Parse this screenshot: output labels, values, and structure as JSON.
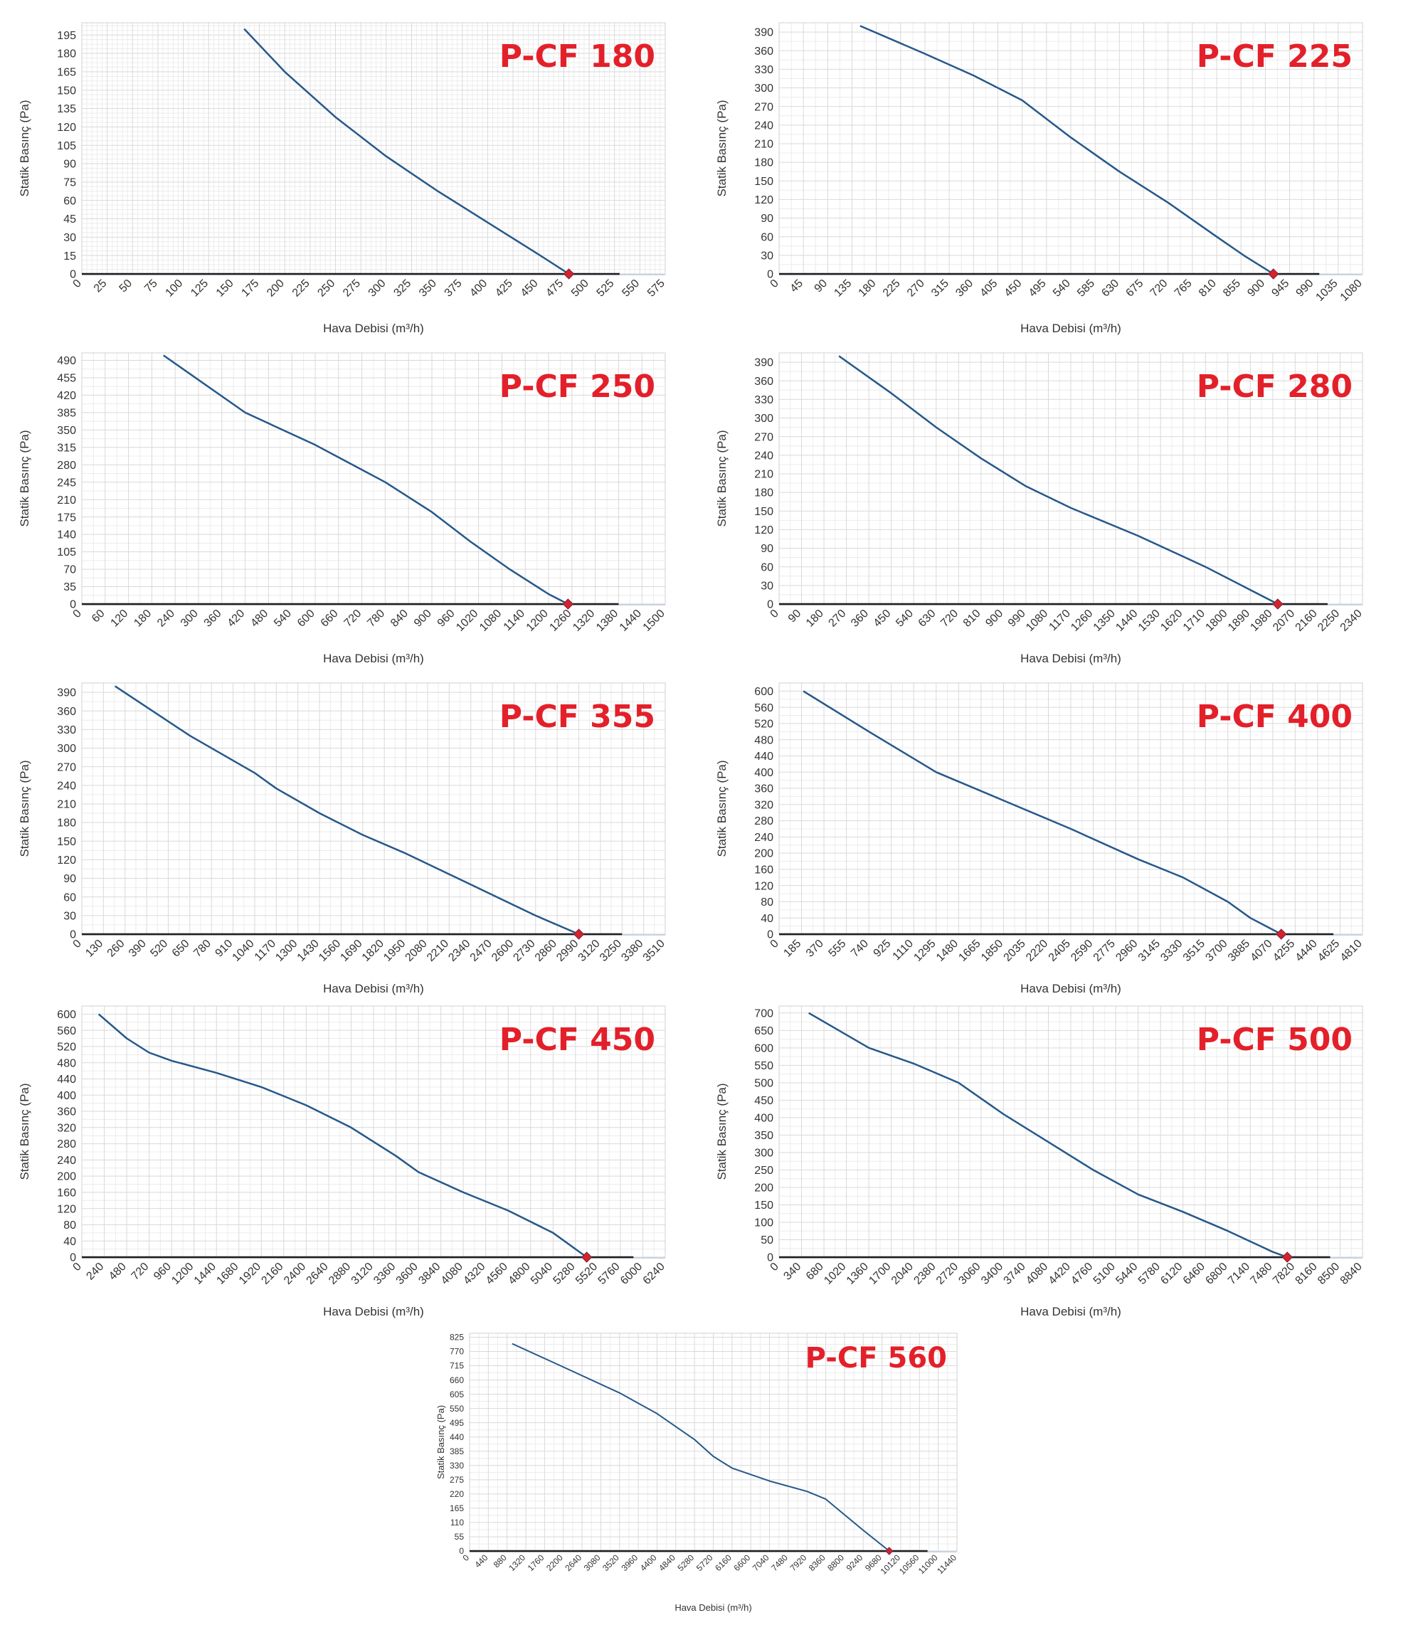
{
  "colors": {
    "title": "#e3202a",
    "curve": "#26588a",
    "axis": "#1e1e1e",
    "grid_minor": "#ececec",
    "grid_major": "#d9d9d9",
    "marker": "#d4232b",
    "label": "#333333"
  },
  "chart_data": [
    {
      "type": "line",
      "title": "P-CF 180",
      "xlabel": "Hava Debisi (m³/h)",
      "ylabel": "Statik Basınç (Pa)",
      "x_ticks": [
        0,
        25,
        50,
        75,
        100,
        125,
        150,
        175,
        200,
        225,
        250,
        275,
        300,
        325,
        350,
        375,
        400,
        425,
        450,
        475,
        500,
        525,
        550,
        575
      ],
      "y_ticks": [
        0,
        15,
        30,
        45,
        60,
        75,
        90,
        105,
        120,
        135,
        150,
        165,
        180,
        195
      ],
      "xlim": [
        0,
        575
      ],
      "ylim": [
        0,
        205
      ],
      "grid": "fine",
      "operating_point": [
        480,
        0
      ],
      "baseline_x_end": 530,
      "series": [
        {
          "x": [
            160,
            200,
            250,
            300,
            350,
            400,
            450,
            480
          ],
          "y": [
            200,
            165,
            128,
            96,
            68,
            42,
            16,
            0
          ]
        }
      ]
    },
    {
      "type": "line",
      "title": "P-CF 225",
      "xlabel": "Hava Debisi (m³/h)",
      "ylabel": "Statik Basınç (Pa)",
      "x_ticks": [
        0,
        45,
        90,
        135,
        180,
        225,
        270,
        315,
        360,
        405,
        450,
        495,
        540,
        585,
        630,
        675,
        720,
        765,
        810,
        855,
        900,
        945,
        990,
        1035,
        1080
      ],
      "y_ticks": [
        0,
        30,
        60,
        90,
        120,
        150,
        180,
        210,
        240,
        270,
        300,
        330,
        360,
        390
      ],
      "xlim": [
        0,
        1080
      ],
      "ylim": [
        0,
        405
      ],
      "grid": "coarse",
      "operating_point": [
        915,
        0
      ],
      "baseline_x_end": 1000,
      "series": [
        {
          "x": [
            150,
            270,
            360,
            450,
            540,
            630,
            720,
            810,
            860,
            915
          ],
          "y": [
            400,
            355,
            320,
            280,
            220,
            165,
            115,
            60,
            30,
            0
          ]
        }
      ]
    },
    {
      "type": "line",
      "title": "P-CF 250",
      "xlabel": "Hava Debisi (m³/h)",
      "ylabel": "Statik Basınç (Pa)",
      "x_ticks": [
        0,
        60,
        120,
        180,
        240,
        300,
        360,
        420,
        480,
        540,
        600,
        660,
        720,
        780,
        840,
        900,
        960,
        1020,
        1080,
        1140,
        1200,
        1260,
        1320,
        1380,
        1440,
        1500
      ],
      "y_ticks": [
        0,
        35,
        70,
        105,
        140,
        175,
        210,
        245,
        280,
        315,
        350,
        385,
        420,
        455,
        490
      ],
      "xlim": [
        0,
        1500
      ],
      "ylim": [
        0,
        505
      ],
      "grid": "coarse",
      "operating_point": [
        1250,
        0
      ],
      "baseline_x_end": 1380,
      "series": [
        {
          "x": [
            210,
            420,
            600,
            780,
            900,
            1000,
            1100,
            1200,
            1250
          ],
          "y": [
            500,
            385,
            320,
            245,
            185,
            125,
            70,
            20,
            0
          ]
        }
      ]
    },
    {
      "type": "line",
      "title": "P-CF 280",
      "xlabel": "Hava Debisi (m³/h)",
      "ylabel": "Statik Basınç (Pa)",
      "x_ticks": [
        0,
        90,
        180,
        270,
        360,
        450,
        540,
        630,
        720,
        810,
        900,
        990,
        1080,
        1170,
        1260,
        1350,
        1440,
        1530,
        1620,
        1710,
        1800,
        1890,
        1980,
        2070,
        2160,
        2250,
        2340
      ],
      "y_ticks": [
        0,
        30,
        60,
        90,
        120,
        150,
        180,
        210,
        240,
        270,
        300,
        330,
        360,
        390
      ],
      "xlim": [
        0,
        2340
      ],
      "ylim": [
        0,
        405
      ],
      "grid": "coarse",
      "operating_point": [
        2000,
        0
      ],
      "baseline_x_end": 2200,
      "series": [
        {
          "x": [
            240,
            450,
            630,
            810,
            990,
            1170,
            1440,
            1710,
            2000
          ],
          "y": [
            400,
            340,
            285,
            235,
            190,
            155,
            110,
            60,
            0
          ]
        }
      ]
    },
    {
      "type": "line",
      "title": "P-CF 355",
      "xlabel": "Hava Debisi (m³/h)",
      "ylabel": "Statik Basınç (Pa)",
      "x_ticks": [
        0,
        130,
        260,
        390,
        520,
        650,
        780,
        910,
        1040,
        1170,
        1300,
        1430,
        1560,
        1690,
        1820,
        1950,
        2080,
        2210,
        2340,
        2470,
        2600,
        2730,
        2860,
        2990,
        3120,
        3250,
        3380,
        3510
      ],
      "y_ticks": [
        0,
        30,
        60,
        90,
        120,
        150,
        180,
        210,
        240,
        270,
        300,
        330,
        360,
        390
      ],
      "xlim": [
        0,
        3510
      ],
      "ylim": [
        0,
        405
      ],
      "grid": "coarse",
      "operating_point": [
        2990,
        0
      ],
      "baseline_x_end": 3250,
      "series": [
        {
          "x": [
            200,
            650,
            1040,
            1170,
            1430,
            1690,
            1950,
            2340,
            2730,
            2990
          ],
          "y": [
            400,
            320,
            260,
            235,
            195,
            160,
            130,
            80,
            30,
            0
          ]
        }
      ]
    },
    {
      "type": "line",
      "title": "P-CF 400",
      "xlabel": "Hava Debisi (m³/h)",
      "ylabel": "Statik Basınç (Pa)",
      "x_ticks": [
        0,
        185,
        370,
        555,
        740,
        925,
        1110,
        1295,
        1480,
        1665,
        1850,
        2035,
        2220,
        2405,
        2590,
        2775,
        2960,
        3145,
        3330,
        3515,
        3700,
        3885,
        4070,
        4255,
        4440,
        4625,
        4810
      ],
      "y_ticks": [
        0,
        40,
        80,
        120,
        160,
        200,
        240,
        280,
        320,
        360,
        400,
        440,
        480,
        520,
        560,
        600
      ],
      "xlim": [
        0,
        4810
      ],
      "ylim": [
        0,
        620
      ],
      "grid": "coarse",
      "operating_point": [
        4140,
        0
      ],
      "baseline_x_end": 4570,
      "series": [
        {
          "x": [
            200,
            740,
            1295,
            1850,
            2405,
            2960,
            3330,
            3700,
            3885,
            4140
          ],
          "y": [
            600,
            500,
            400,
            330,
            260,
            185,
            140,
            80,
            40,
            0
          ]
        }
      ]
    },
    {
      "type": "line",
      "title": "P-CF 450",
      "xlabel": "Hava Debisi (m³/h)",
      "ylabel": "Statik Basınç (Pa)",
      "x_ticks": [
        0,
        240,
        480,
        720,
        960,
        1200,
        1440,
        1680,
        1920,
        2160,
        2400,
        2640,
        2880,
        3120,
        3360,
        3600,
        3840,
        4080,
        4320,
        4560,
        4800,
        5040,
        5280,
        5520,
        5760,
        6000,
        6240
      ],
      "y_ticks": [
        0,
        40,
        80,
        120,
        160,
        200,
        240,
        280,
        320,
        360,
        400,
        440,
        480,
        520,
        560,
        600
      ],
      "xlim": [
        0,
        6240
      ],
      "ylim": [
        0,
        620
      ],
      "grid": "coarse",
      "operating_point": [
        5400,
        0
      ],
      "baseline_x_end": 5900,
      "series": [
        {
          "x": [
            180,
            480,
            720,
            960,
            1440,
            1920,
            2400,
            2880,
            3360,
            3600,
            4080,
            4560,
            5040,
            5400
          ],
          "y": [
            600,
            540,
            505,
            485,
            455,
            420,
            375,
            320,
            250,
            210,
            160,
            115,
            60,
            0
          ]
        }
      ]
    },
    {
      "type": "line",
      "title": "P-CF 500",
      "xlabel": "Hava Debisi (m³/h)",
      "ylabel": "Statik Basınç (Pa)",
      "x_ticks": [
        0,
        340,
        680,
        1020,
        1360,
        1700,
        2040,
        2380,
        2720,
        3060,
        3400,
        3740,
        4080,
        4420,
        4760,
        5100,
        5440,
        5780,
        6120,
        6460,
        6800,
        7140,
        7480,
        7820,
        8160,
        8500,
        8840
      ],
      "y_ticks": [
        0,
        50,
        100,
        150,
        200,
        250,
        300,
        350,
        400,
        450,
        500,
        550,
        600,
        650,
        700
      ],
      "xlim": [
        0,
        8840
      ],
      "ylim": [
        0,
        720
      ],
      "grid": "coarse",
      "operating_point": [
        7700,
        0
      ],
      "baseline_x_end": 8350,
      "series": [
        {
          "x": [
            450,
            1360,
            2040,
            2720,
            3400,
            4080,
            4760,
            5440,
            6120,
            6800,
            7480,
            7700
          ],
          "y": [
            700,
            600,
            555,
            500,
            410,
            330,
            250,
            180,
            130,
            75,
            15,
            0
          ]
        }
      ]
    },
    {
      "type": "line",
      "title": "P-CF 560",
      "xlabel": "Hava Debisi (m³/h)",
      "ylabel": "Statik Basınç (Pa)",
      "x_ticks": [
        0,
        440,
        880,
        1320,
        1760,
        2200,
        2640,
        3080,
        3520,
        3960,
        4400,
        4840,
        5280,
        5720,
        6160,
        6600,
        7040,
        7480,
        7920,
        8360,
        8800,
        9240,
        9680,
        10120,
        10560,
        11000,
        11440
      ],
      "y_ticks": [
        0,
        55,
        110,
        165,
        220,
        275,
        330,
        385,
        440,
        495,
        550,
        605,
        660,
        715,
        770,
        825
      ],
      "xlim": [
        0,
        11440
      ],
      "ylim": [
        0,
        840
      ],
      "grid": "coarse",
      "operating_point": [
        9850,
        0
      ],
      "baseline_x_end": 10750,
      "series": [
        {
          "x": [
            1000,
            2200,
            3520,
            4400,
            5280,
            5720,
            6160,
            7040,
            7920,
            8360,
            8800,
            9240,
            9850
          ],
          "y": [
            800,
            710,
            610,
            530,
            430,
            365,
            320,
            270,
            230,
            200,
            140,
            80,
            0
          ]
        }
      ]
    }
  ]
}
